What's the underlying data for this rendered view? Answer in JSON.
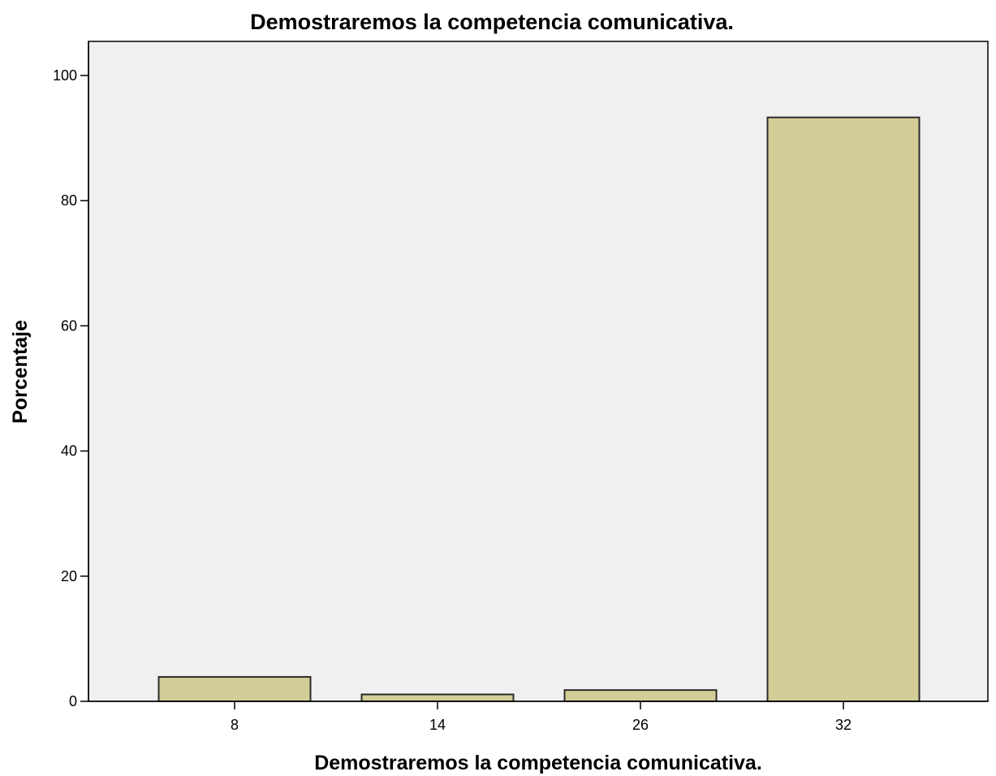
{
  "chart_data": {
    "type": "bar",
    "title": "Demostraremos la competencia comunicativa.",
    "xlabel": "Demostraremos la competencia comunicativa.",
    "ylabel": "Porcentaje",
    "categories": [
      "8",
      "14",
      "26",
      "32"
    ],
    "values": [
      3.9,
      1.1,
      1.8,
      93.3
    ],
    "ylim": [
      0,
      100
    ],
    "yticks": [
      0,
      20,
      40,
      60,
      80,
      100
    ],
    "grid": false,
    "legend": "none",
    "colors": {
      "bar_fill": "#d3ce98",
      "bar_stroke": "#2b2b2b",
      "plot_background": "#f0f0f0",
      "axis": "#000000"
    }
  }
}
